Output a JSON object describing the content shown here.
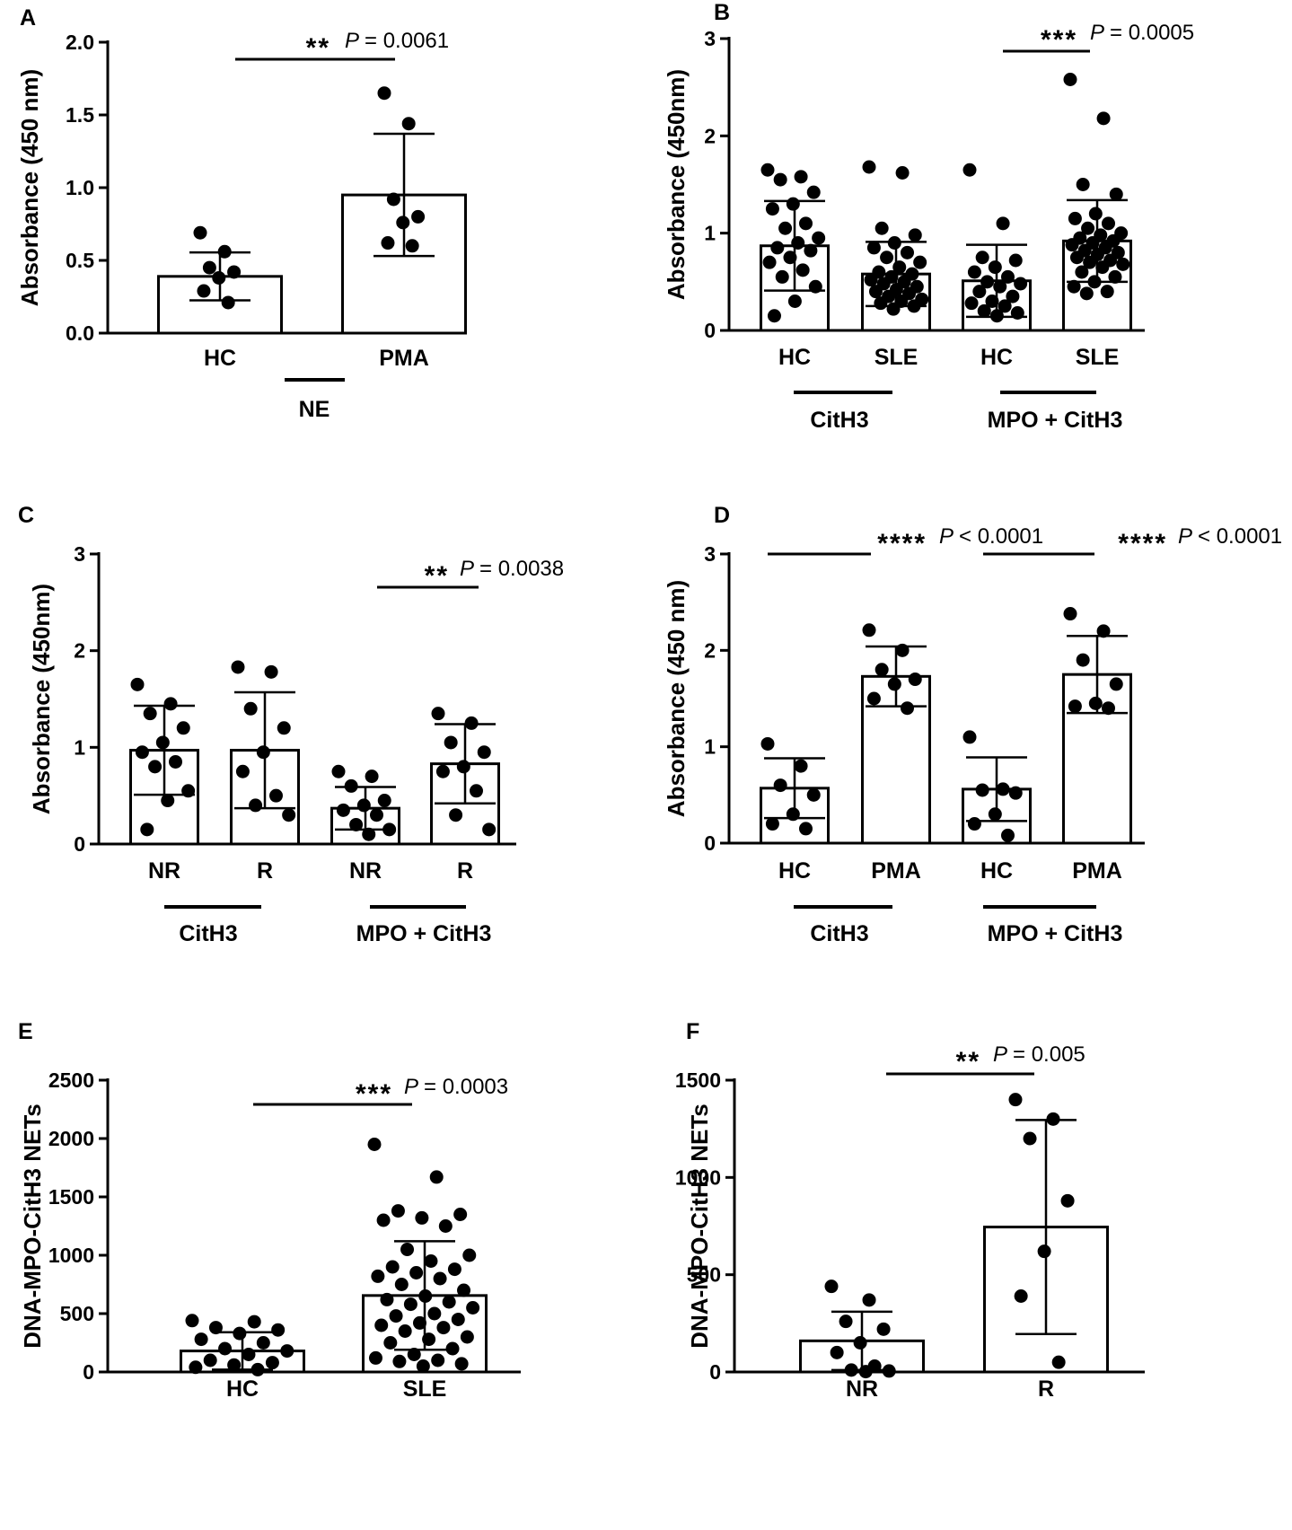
{
  "chart_data": [
    {
      "panel": "A",
      "type": "bar",
      "ylabel": "Absorbance (450 nm)",
      "ylim": [
        0,
        2.0
      ],
      "yticks": [
        "0.0",
        "0.5",
        "1.0",
        "1.5",
        "2.0"
      ],
      "categories": [
        "HC",
        "PMA"
      ],
      "group_labels": [
        "NE"
      ],
      "means": [
        0.39,
        0.95
      ],
      "sd": [
        0.165,
        0.42
      ],
      "points": [
        [
          0.69,
          0.56,
          0.45,
          0.42,
          0.38,
          0.29,
          0.21
        ],
        [
          1.65,
          1.44,
          0.92,
          0.8,
          0.76,
          0.62,
          0.6
        ]
      ],
      "significance": [
        {
          "stars": "**",
          "p_label": "P",
          "p_text": "= 0.0061"
        }
      ]
    },
    {
      "panel": "B",
      "type": "bar",
      "ylabel": "Absorbance (450nm)",
      "ylim": [
        0,
        3
      ],
      "yticks": [
        "0",
        "1",
        "2",
        "3"
      ],
      "categories": [
        "HC",
        "SLE",
        "HC",
        "SLE"
      ],
      "group_labels": [
        "CitH3",
        "MPO + CitH3"
      ],
      "means": [
        0.87,
        0.58,
        0.51,
        0.92
      ],
      "sd": [
        0.46,
        0.33,
        0.37,
        0.42
      ],
      "points": [
        [
          1.65,
          1.58,
          1.55,
          1.42,
          1.3,
          1.25,
          1.1,
          1.05,
          0.95,
          0.9,
          0.85,
          0.82,
          0.75,
          0.7,
          0.62,
          0.55,
          0.45,
          0.3,
          0.15
        ],
        [
          1.68,
          1.62,
          1.05,
          0.98,
          0.9,
          0.85,
          0.8,
          0.75,
          0.7,
          0.65,
          0.6,
          0.58,
          0.55,
          0.52,
          0.5,
          0.48,
          0.45,
          0.42,
          0.4,
          0.38,
          0.35,
          0.32,
          0.3,
          0.28,
          0.25,
          0.22
        ],
        [
          1.65,
          1.1,
          0.75,
          0.72,
          0.65,
          0.6,
          0.55,
          0.5,
          0.48,
          0.45,
          0.4,
          0.35,
          0.3,
          0.28,
          0.25,
          0.2,
          0.18,
          0.15
        ],
        [
          2.58,
          2.18,
          1.5,
          1.4,
          1.2,
          1.15,
          1.1,
          1.05,
          1.0,
          0.98,
          0.95,
          0.92,
          0.9,
          0.88,
          0.85,
          0.82,
          0.8,
          0.78,
          0.75,
          0.72,
          0.7,
          0.68,
          0.65,
          0.6,
          0.55,
          0.5,
          0.45,
          0.4,
          0.38
        ]
      ],
      "significance": [
        {
          "stars": "***",
          "p_label": "P",
          "p_text": "= 0.0005"
        }
      ]
    },
    {
      "panel": "C",
      "type": "bar",
      "ylabel": "Absorbance (450nm)",
      "ylim": [
        0,
        3
      ],
      "yticks": [
        "0",
        "1",
        "2",
        "3"
      ],
      "categories": [
        "NR",
        "R",
        "NR",
        "R"
      ],
      "group_labels": [
        "CitH3",
        "MPO + CitH3"
      ],
      "means": [
        0.97,
        0.97,
        0.37,
        0.83
      ],
      "sd": [
        0.46,
        0.6,
        0.22,
        0.41
      ],
      "points": [
        [
          1.65,
          1.45,
          1.35,
          1.2,
          1.05,
          0.95,
          0.85,
          0.8,
          0.55,
          0.45,
          0.15
        ],
        [
          1.83,
          1.78,
          1.4,
          1.2,
          0.95,
          0.75,
          0.5,
          0.4,
          0.3
        ],
        [
          0.75,
          0.7,
          0.6,
          0.45,
          0.4,
          0.35,
          0.3,
          0.2,
          0.15,
          0.1
        ],
        [
          1.35,
          1.25,
          1.05,
          0.95,
          0.8,
          0.75,
          0.55,
          0.3,
          0.15
        ]
      ],
      "significance": [
        {
          "stars": "**",
          "p_label": "P",
          "p_text": "= 0.0038"
        }
      ]
    },
    {
      "panel": "D",
      "type": "bar",
      "ylabel": "Absorbance (450 nm)",
      "ylim": [
        0,
        3
      ],
      "yticks": [
        "0",
        "1",
        "2",
        "3"
      ],
      "categories": [
        "HC",
        "PMA",
        "HC",
        "PMA"
      ],
      "group_labels": [
        "CitH3",
        "MPO + CitH3"
      ],
      "means": [
        0.57,
        1.73,
        0.56,
        1.75
      ],
      "sd": [
        0.31,
        0.31,
        0.33,
        0.4
      ],
      "points": [
        [
          1.03,
          0.8,
          0.6,
          0.5,
          0.3,
          0.2,
          0.15
        ],
        [
          2.21,
          2.0,
          1.8,
          1.7,
          1.65,
          1.5,
          1.4
        ],
        [
          1.1,
          0.56,
          0.55,
          0.52,
          0.3,
          0.2,
          0.08
        ],
        [
          2.38,
          2.2,
          1.9,
          1.65,
          1.45,
          1.42,
          1.4
        ]
      ],
      "significance": [
        {
          "stars": "****",
          "p_label": "P",
          "p_text": "< 0.0001"
        },
        {
          "stars": "****",
          "p_label": "P",
          "p_text": "< 0.0001"
        }
      ]
    },
    {
      "panel": "E",
      "type": "bar",
      "ylabel": "DNA-MPO-CitH3 NETs",
      "ylim": [
        0,
        2500
      ],
      "yticks": [
        "0",
        "500",
        "1000",
        "1500",
        "2000",
        "2500"
      ],
      "categories": [
        "HC",
        "SLE"
      ],
      "group_labels": [],
      "means": [
        180,
        655
      ],
      "sd": [
        160,
        465
      ],
      "points": [
        [
          440,
          430,
          380,
          360,
          330,
          280,
          250,
          200,
          180,
          150,
          100,
          80,
          60,
          40,
          20
        ],
        [
          1950,
          1670,
          1380,
          1350,
          1320,
          1300,
          1250,
          1050,
          1000,
          950,
          900,
          880,
          850,
          820,
          800,
          750,
          700,
          650,
          620,
          600,
          580,
          550,
          500,
          480,
          450,
          420,
          400,
          380,
          350,
          300,
          280,
          250,
          200,
          150,
          120,
          100,
          90,
          70,
          50
        ]
      ],
      "significance": [
        {
          "stars": "***",
          "p_label": "P",
          "p_text": "= 0.0003"
        }
      ]
    },
    {
      "panel": "F",
      "type": "bar",
      "ylabel": "DNA-MPO-CitH3 NETs",
      "ylim": [
        0,
        1500
      ],
      "yticks": [
        "0",
        "500",
        "1000",
        "1500"
      ],
      "categories": [
        "NR",
        "R"
      ],
      "group_labels": [],
      "means": [
        160,
        745
      ],
      "sd": [
        150,
        550
      ],
      "points": [
        [
          440,
          370,
          260,
          220,
          150,
          100,
          30,
          10,
          5,
          2
        ],
        [
          1400,
          1300,
          1200,
          880,
          620,
          390,
          50
        ]
      ],
      "significance": [
        {
          "stars": "**",
          "p_label": "P",
          "p_text": "= 0.005"
        }
      ]
    }
  ]
}
